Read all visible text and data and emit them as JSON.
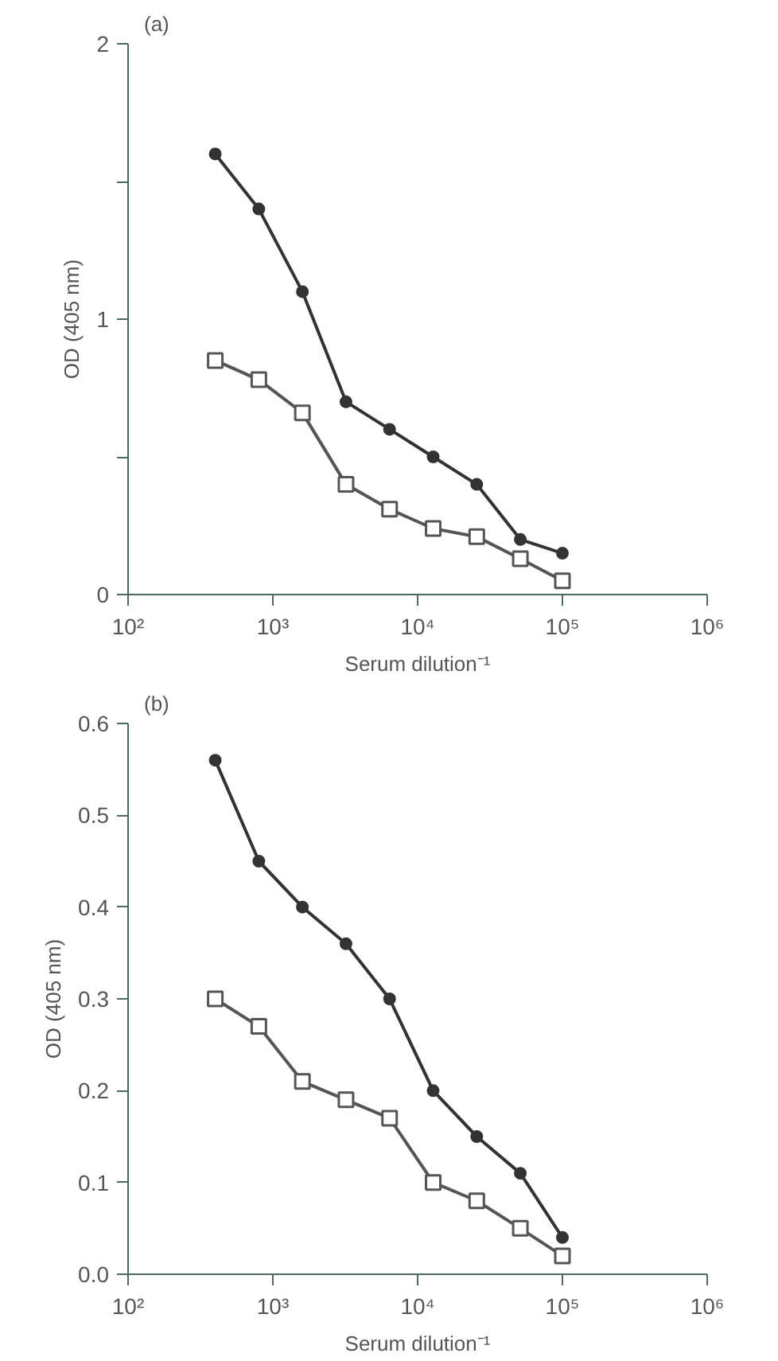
{
  "chart_data": [
    {
      "type": "line",
      "title": "(a)",
      "xlabel": "Serum dilution⁻¹",
      "ylabel": "OD (405 nm)",
      "log": "x",
      "grid": false,
      "line_style": "solid",
      "x": [
        400,
        800,
        1600,
        3200,
        6400,
        12800,
        25600,
        51200,
        100000
      ],
      "xlim": [
        100,
        1000000
      ],
      "xticks": [
        {
          "value": 100,
          "label": "10²"
        },
        {
          "value": 1000,
          "label": "10³"
        },
        {
          "value": 10000,
          "label": "10⁴"
        },
        {
          "value": 100000,
          "label": "10⁵"
        },
        {
          "value": 1000000,
          "label": "10⁶"
        }
      ],
      "ylim": [
        0,
        2
      ],
      "yticks": [
        0,
        {
          "value": 0.5,
          "label": null
        },
        1,
        {
          "value": 1.5,
          "label": null
        },
        2
      ],
      "series": [
        {
          "color": "#333333",
          "marker": "circle",
          "values": [
            1.6,
            1.4,
            1.1,
            0.7,
            0.6,
            0.5,
            0.4,
            0.2,
            0.15
          ]
        },
        {
          "color": "#555555",
          "marker": "square",
          "values": [
            0.85,
            0.78,
            0.66,
            0.4,
            0.31,
            0.24,
            0.21,
            0.13,
            0.05
          ]
        }
      ]
    },
    {
      "type": "line",
      "title": "(b)",
      "xlabel": "Serum dilution⁻¹",
      "ylabel": "OD (405 nm)",
      "log": "x",
      "grid": false,
      "line_style": "solid",
      "x": [
        400,
        800,
        1600,
        3200,
        6400,
        12800,
        25600,
        51200,
        100000
      ],
      "xlim": [
        100,
        1000000
      ],
      "xticks": [
        {
          "value": 100,
          "label": "10²"
        },
        {
          "value": 1000,
          "label": "10³"
        },
        {
          "value": 10000,
          "label": "10⁴"
        },
        {
          "value": 100000,
          "label": "10⁵"
        },
        {
          "value": 1000000,
          "label": "10⁶"
        }
      ],
      "ylim": [
        0,
        0.6
      ],
      "yticks": [
        {
          "value": 0,
          "label": "0.0"
        },
        0.1,
        0.2,
        0.3,
        0.4,
        0.5,
        0.6
      ],
      "series": [
        {
          "color": "#333333",
          "marker": "circle",
          "values": [
            0.56,
            0.45,
            0.4,
            0.36,
            0.3,
            0.2,
            0.15,
            0.11,
            0.04
          ]
        },
        {
          "color": "#555555",
          "marker": "square",
          "values": [
            0.3,
            0.27,
            0.21,
            0.19,
            0.17,
            0.1,
            0.08,
            0.05,
            0.02
          ]
        }
      ]
    }
  ]
}
